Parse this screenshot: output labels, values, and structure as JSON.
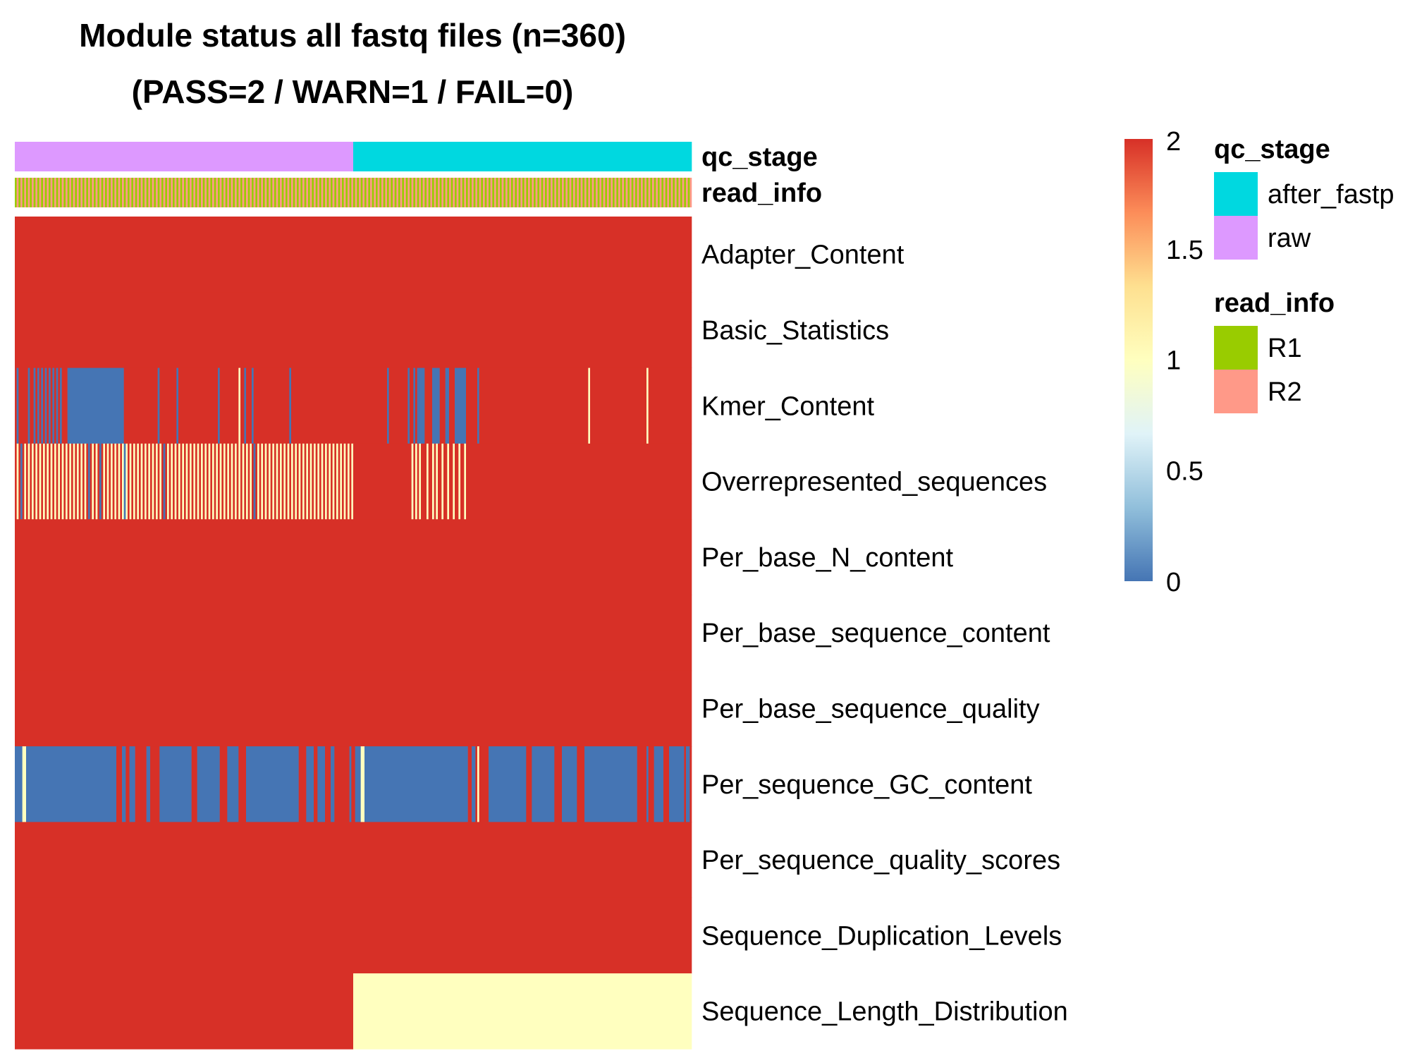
{
  "chart_data": {
    "type": "heatmap",
    "title": "Module status all fastq files (n=360)",
    "subtitle": "(PASS=2 / WARN=1 / FAIL=0)",
    "n_samples": 360,
    "annotations": [
      {
        "name": "qc_stage",
        "segments": [
          {
            "label": "raw",
            "start": 0,
            "end": 180
          },
          {
            "label": "after_fastp",
            "start": 180,
            "end": 360
          }
        ]
      },
      {
        "name": "read_info",
        "pattern": [
          "R1",
          "R2"
        ]
      }
    ],
    "rows": [
      {
        "name": "Adapter_Content",
        "default": 2,
        "runs": []
      },
      {
        "name": "Basic_Statistics",
        "default": 2,
        "runs": []
      },
      {
        "name": "Kmer_Content",
        "default": 2,
        "runs": [
          [
            1,
            1,
            0
          ],
          [
            7,
            1,
            0
          ],
          [
            10,
            1,
            0
          ],
          [
            12,
            1,
            0
          ],
          [
            14,
            1,
            0
          ],
          [
            16,
            1,
            0
          ],
          [
            18,
            1,
            0
          ],
          [
            20,
            1,
            0
          ],
          [
            22,
            1,
            0
          ],
          [
            24,
            1,
            0
          ],
          [
            28,
            30,
            0
          ],
          [
            76,
            1,
            0
          ],
          [
            86,
            1,
            0
          ],
          [
            108,
            1,
            0
          ],
          [
            119,
            1,
            1
          ],
          [
            122,
            1,
            0
          ],
          [
            126,
            1,
            0
          ],
          [
            146,
            1,
            0
          ],
          [
            198,
            1,
            0
          ],
          [
            209,
            1,
            0
          ],
          [
            212,
            1,
            0
          ],
          [
            214,
            4,
            0
          ],
          [
            222,
            4,
            0
          ],
          [
            229,
            2,
            0
          ],
          [
            234,
            6,
            0
          ],
          [
            246,
            1,
            0
          ],
          [
            305,
            1,
            1
          ],
          [
            336,
            1,
            1
          ]
        ]
      },
      {
        "name": "Overrepresented_sequences",
        "default": 2,
        "alternate": [
          0,
          180,
          1
        ],
        "runs": [
          [
            3,
            1,
            0
          ],
          [
            39,
            1,
            0
          ],
          [
            45,
            1,
            0
          ],
          [
            58,
            1,
            0
          ],
          [
            79,
            1,
            0
          ],
          [
            127,
            1,
            0
          ],
          [
            211,
            1,
            1
          ],
          [
            213,
            1,
            1
          ],
          [
            215,
            1,
            1
          ],
          [
            219,
            1,
            1
          ],
          [
            222,
            1,
            1
          ],
          [
            224,
            1,
            1
          ],
          [
            227,
            1,
            1
          ],
          [
            230,
            1,
            1
          ],
          [
            233,
            1,
            1
          ],
          [
            236,
            1,
            1
          ],
          [
            239,
            1,
            1
          ]
        ]
      },
      {
        "name": "Per_base_N_content",
        "default": 2,
        "runs": []
      },
      {
        "name": "Per_base_sequence_content",
        "default": 2,
        "runs": []
      },
      {
        "name": "Per_base_sequence_quality",
        "default": 2,
        "runs": []
      },
      {
        "name": "Per_sequence_GC_content",
        "default": 2,
        "runs": [
          [
            0,
            4,
            0
          ],
          [
            4,
            2,
            1
          ],
          [
            6,
            48,
            0
          ],
          [
            57,
            2,
            0
          ],
          [
            61,
            3,
            0
          ],
          [
            70,
            2,
            0
          ],
          [
            77,
            17,
            0
          ],
          [
            97,
            12,
            0
          ],
          [
            113,
            6,
            0
          ],
          [
            123,
            28,
            0
          ],
          [
            155,
            2,
            0
          ],
          [
            157,
            2,
            0
          ],
          [
            161,
            4,
            0
          ],
          [
            168,
            2,
            0
          ],
          [
            178,
            1,
            0
          ],
          [
            181,
            3,
            0
          ],
          [
            184,
            2,
            1
          ],
          [
            186,
            55,
            0
          ],
          [
            243,
            2,
            0
          ],
          [
            246,
            1,
            1
          ],
          [
            252,
            20,
            0
          ],
          [
            275,
            12,
            0
          ],
          [
            291,
            8,
            0
          ],
          [
            303,
            28,
            0
          ],
          [
            336,
            1,
            0
          ],
          [
            340,
            5,
            0
          ],
          [
            348,
            8,
            0
          ],
          [
            357,
            2,
            0
          ]
        ]
      },
      {
        "name": "Per_sequence_quality_scores",
        "default": 2,
        "runs": []
      },
      {
        "name": "Sequence_Duplication_Levels",
        "default": 2,
        "runs": []
      },
      {
        "name": "Sequence_Length_Distribution",
        "default": 2,
        "runs": [
          [
            180,
            180,
            1
          ]
        ]
      }
    ],
    "colorbar": {
      "min": 0,
      "max": 2,
      "ticks": [
        "2",
        "1.5",
        "1",
        "0.5",
        "0"
      ]
    },
    "legends": [
      {
        "title": "qc_stage",
        "items": [
          {
            "label": "after_fastp",
            "color": "#00D8E0"
          },
          {
            "label": "raw",
            "color": "#DD99FF"
          }
        ]
      },
      {
        "title": "read_info",
        "items": [
          {
            "label": "R1",
            "color": "#99CC00"
          },
          {
            "label": "R2",
            "color": "#FF9988"
          }
        ]
      }
    ]
  },
  "colors": {
    "fail": "#4575B4",
    "warn": "#FFFFBF",
    "pass": "#D73027",
    "scale": [
      "#4575B4",
      "#91BFDB",
      "#E0F3F8",
      "#FFFFBF",
      "#FEE090",
      "#FC8D59",
      "#D73027"
    ]
  }
}
